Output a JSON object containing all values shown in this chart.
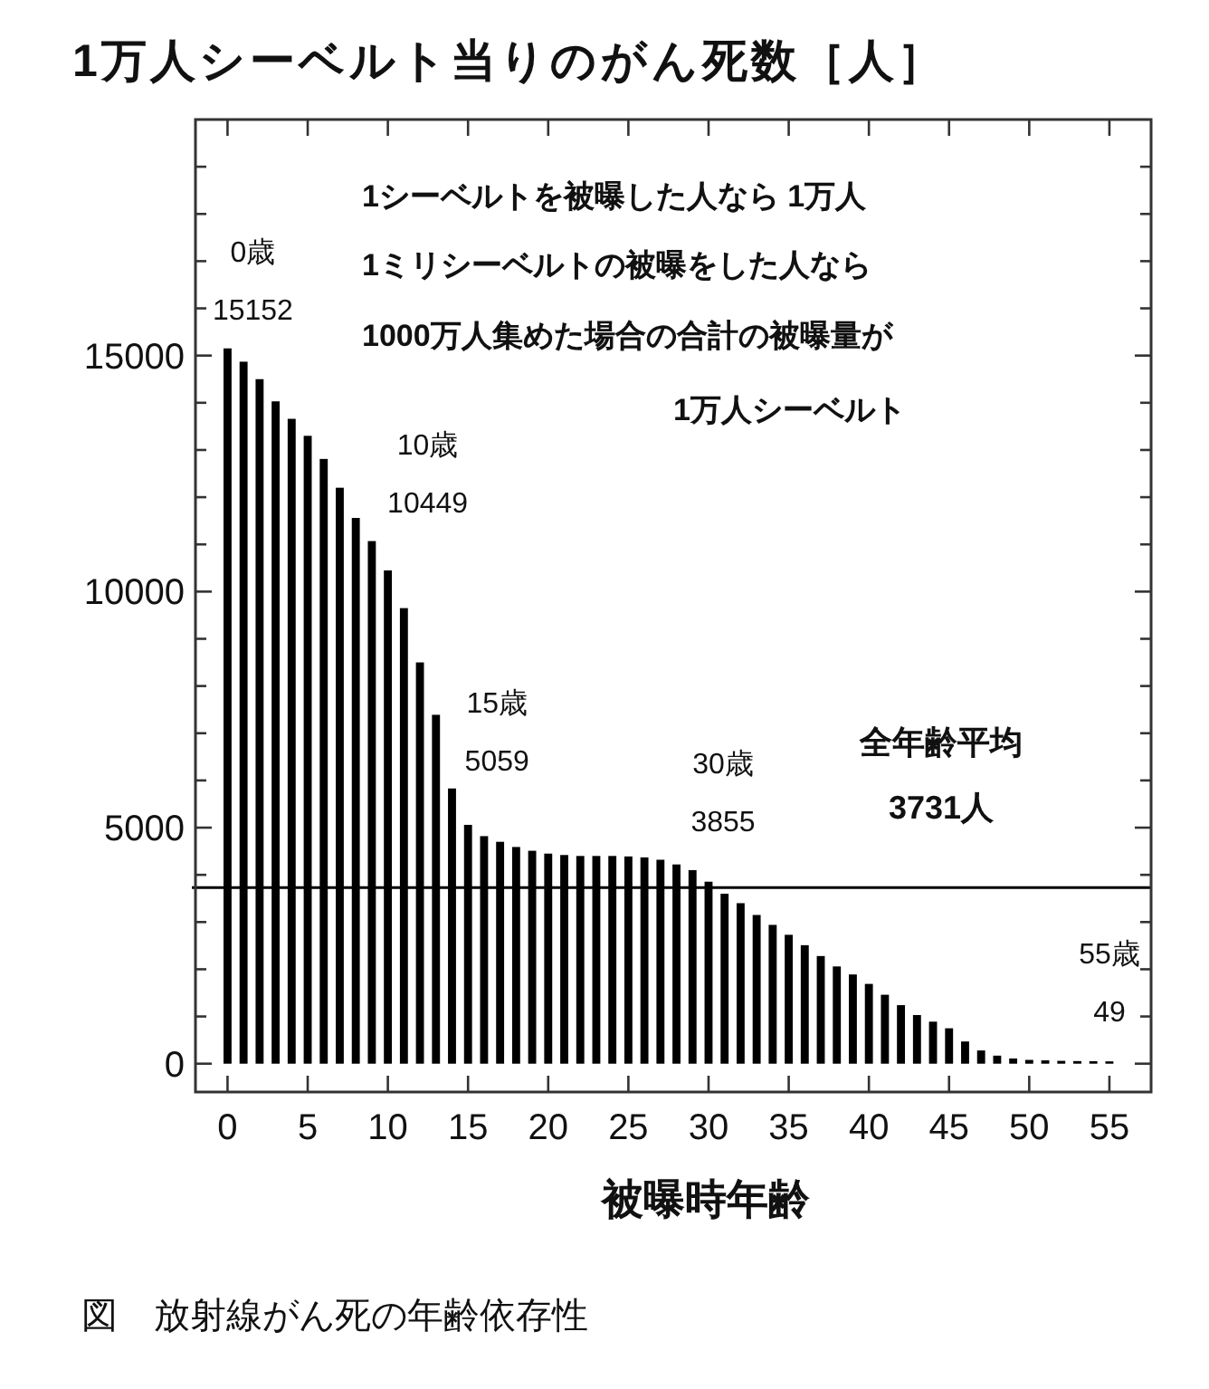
{
  "chart_data": {
    "type": "bar",
    "title": "1万人シーベルト当りのがん死数［人］",
    "xlabel": "被曝時年齢",
    "x": [
      0,
      1,
      2,
      3,
      4,
      5,
      6,
      7,
      8,
      9,
      10,
      11,
      12,
      13,
      14,
      15,
      16,
      17,
      18,
      19,
      20,
      21,
      22,
      23,
      24,
      25,
      26,
      27,
      28,
      29,
      30,
      31,
      32,
      33,
      34,
      35,
      36,
      37,
      38,
      39,
      40,
      41,
      42,
      43,
      44,
      45,
      46,
      47,
      48,
      49,
      50,
      51,
      52,
      53,
      54,
      55
    ],
    "values": [
      15152,
      14870,
      14500,
      14030,
      13660,
      13300,
      12810,
      12200,
      11560,
      11070,
      10449,
      9650,
      8500,
      7390,
      5830,
      5059,
      4820,
      4700,
      4590,
      4510,
      4450,
      4420,
      4400,
      4400,
      4400,
      4390,
      4370,
      4320,
      4220,
      4100,
      3855,
      3600,
      3400,
      3150,
      2940,
      2730,
      2510,
      2280,
      2060,
      1890,
      1690,
      1460,
      1240,
      1030,
      890,
      750,
      470,
      280,
      170,
      110,
      80,
      70,
      60,
      55,
      52,
      49
    ],
    "color": "#000000",
    "xlim": [
      -2,
      57.6
    ],
    "ylim": [
      -600,
      20000
    ],
    "xticks": [
      0,
      5,
      10,
      15,
      20,
      25,
      30,
      35,
      40,
      45,
      50,
      55
    ],
    "yticks": [
      0,
      {
        "value": 1000,
        "label": null
      },
      {
        "value": 2000,
        "label": null
      },
      {
        "value": 3000,
        "label": null
      },
      {
        "value": 4000,
        "label": null
      },
      5000,
      {
        "value": 6000,
        "label": null
      },
      {
        "value": 7000,
        "label": null
      },
      {
        "value": 8000,
        "label": null
      },
      {
        "value": 9000,
        "label": null
      },
      10000,
      {
        "value": 11000,
        "label": null
      },
      {
        "value": 12000,
        "label": null
      },
      {
        "value": 13000,
        "label": null
      },
      {
        "value": 14000,
        "label": null
      },
      15000,
      {
        "value": 16000,
        "label": null
      },
      {
        "value": 17000,
        "label": null
      },
      {
        "value": 18000,
        "label": null
      },
      {
        "value": 19000,
        "label": null
      }
    ],
    "ref_lines": [
      {
        "axis": "y",
        "value": 3731,
        "label": "全年齢平均\n3731人",
        "color": "#000000"
      }
    ],
    "annotations": [
      "1シーベルトを被曝した人なら 1万人",
      "1ミリシーベルトの被曝をした人なら",
      "1000万人集めた場合の合計の被曝量が",
      "1万人シーベルト",
      {
        "text": "0歳\n15152",
        "x": 0,
        "y": 15152
      },
      {
        "text": "10歳\n10449",
        "x": 10,
        "y": 10449
      },
      {
        "text": "15歳\n5059",
        "x": 15,
        "y": 5059
      },
      {
        "text": "30歳\n3855",
        "x": 30,
        "y": 3855
      },
      {
        "text": "55歳\n49",
        "x": 55,
        "y": 49
      },
      "図　放射線がん死の年齢依存性"
    ]
  }
}
